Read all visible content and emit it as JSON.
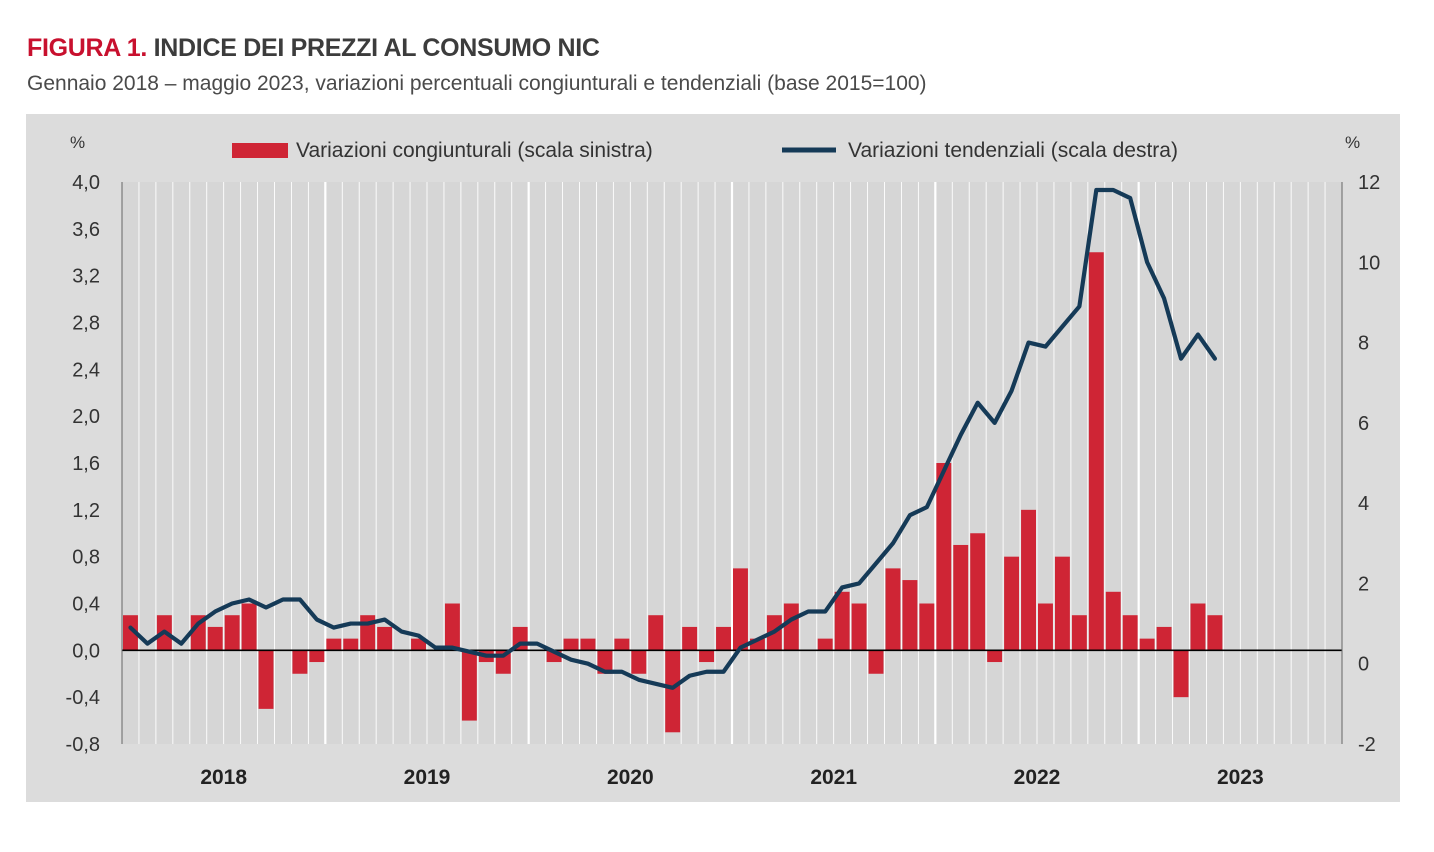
{
  "header": {
    "figure_label": "FIGURA 1.",
    "title": "INDICE DEI PREZZI AL CONSUMO NIC",
    "subtitle": "Gennaio 2018 – maggio 2023, variazioni percentuali congiunturali e tendenziali (base 2015=100)"
  },
  "colors": {
    "bars": "#cf2535",
    "line": "#153a57",
    "panel": "#dcdcdc",
    "title_accent": "#c8102e"
  },
  "chart_data": {
    "type": "bar+line",
    "unit_left": "%",
    "unit_right": "%",
    "left_axis": {
      "range": [
        -0.8,
        4.0
      ],
      "ticks": [
        "4,0",
        "3,6",
        "3,2",
        "2,8",
        "2,4",
        "2,0",
        "1,6",
        "1,2",
        "0,8",
        "0,4",
        "0,0",
        "-0,4",
        "-0,8"
      ]
    },
    "right_axis": {
      "range": [
        -2,
        12
      ],
      "ticks": [
        "12",
        "10",
        "8",
        "6",
        "4",
        "2",
        "0",
        "-2"
      ]
    },
    "x_axis": {
      "years": [
        "2018",
        "2019",
        "2020",
        "2021",
        "2022",
        "2023"
      ]
    },
    "grid": "vertical, every month (white lines)",
    "legend_position": "top",
    "series": [
      {
        "name": "Variazioni congiunturali (scala sinistra)",
        "type": "bar",
        "axis": "left",
        "values": [
          0.3,
          0.0,
          0.3,
          0.0,
          0.3,
          0.2,
          0.3,
          0.4,
          -0.5,
          0.0,
          -0.2,
          -0.1,
          0.1,
          0.1,
          0.3,
          0.2,
          0.0,
          0.1,
          0.0,
          0.4,
          -0.6,
          -0.1,
          -0.2,
          0.2,
          0.0,
          -0.1,
          0.1,
          0.1,
          -0.2,
          0.1,
          -0.2,
          0.3,
          -0.7,
          0.2,
          -0.1,
          0.2,
          0.7,
          0.1,
          0.3,
          0.4,
          0.0,
          0.1,
          0.5,
          0.4,
          -0.2,
          0.7,
          0.6,
          0.4,
          1.6,
          0.9,
          1.0,
          -0.1,
          0.8,
          1.2,
          0.4,
          0.8,
          0.3,
          3.4,
          0.5,
          0.3,
          0.1,
          0.2,
          -0.4,
          0.4,
          0.3
        ]
      },
      {
        "name": "Variazioni tendenziali (scala destra)",
        "type": "line",
        "axis": "right",
        "values": [
          0.9,
          0.5,
          0.8,
          0.5,
          1.0,
          1.3,
          1.5,
          1.6,
          1.4,
          1.6,
          1.6,
          1.1,
          0.9,
          1.0,
          1.0,
          1.1,
          0.8,
          0.7,
          0.4,
          0.4,
          0.3,
          0.2,
          0.2,
          0.5,
          0.5,
          0.3,
          0.1,
          0.0,
          -0.2,
          -0.2,
          -0.4,
          -0.5,
          -0.6,
          -0.3,
          -0.2,
          -0.2,
          0.4,
          0.6,
          0.8,
          1.1,
          1.3,
          1.3,
          1.9,
          2.0,
          2.5,
          3.0,
          3.7,
          3.9,
          4.8,
          5.7,
          6.5,
          6.0,
          6.8,
          8.0,
          7.9,
          8.4,
          8.9,
          11.8,
          11.8,
          11.6,
          10.0,
          9.1,
          7.6,
          8.2,
          7.6
        ]
      }
    ]
  }
}
